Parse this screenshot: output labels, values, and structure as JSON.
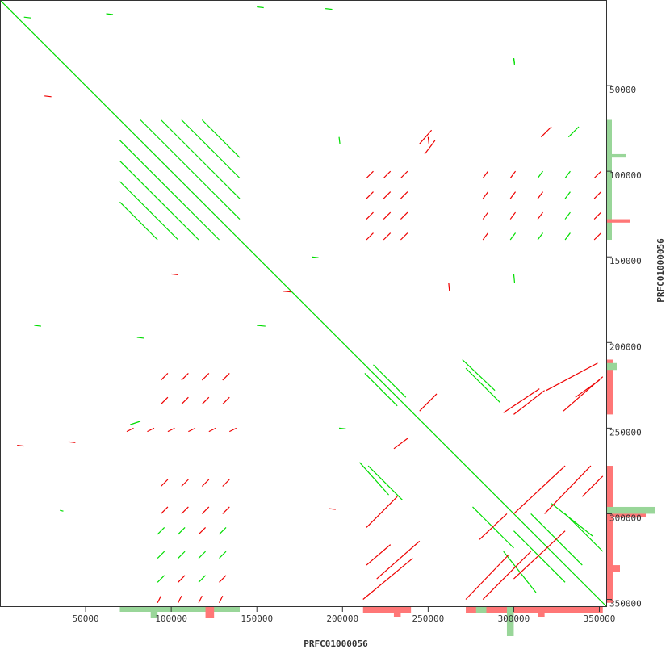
{
  "chart_data": {
    "type": "scatter",
    "subtype": "dot-plot self-alignment",
    "xlabel": "PRFC01000056",
    "ylabel": "PRFC01000056",
    "xlim": [
      0,
      354000
    ],
    "ylim": [
      0,
      354000
    ],
    "y_inverted": true,
    "x_ticks": [
      50000,
      100000,
      150000,
      200000,
      250000,
      300000,
      350000
    ],
    "y_ticks": [
      50000,
      100000,
      150000,
      200000,
      250000,
      300000,
      350000
    ],
    "x_tick_labels": [
      "50000",
      "100000",
      "150000",
      "200000",
      "250000",
      "300000",
      "350000"
    ],
    "y_tick_labels": [
      "50000",
      "100000",
      "150000",
      "200000",
      "250000",
      "300000",
      "350000"
    ],
    "grid": false,
    "colors": {
      "forward": "#00dd00",
      "reverse": "#ee0000",
      "forward_coverage": "#99d699",
      "reverse_coverage": "#ff7777",
      "frame": "#333333"
    },
    "segments": [
      [
        0,
        0,
        354000,
        354000,
        "f"
      ],
      [
        82000,
        70000,
        140000,
        128000,
        "f"
      ],
      [
        70000,
        82000,
        128000,
        140000,
        "f"
      ],
      [
        94000,
        70000,
        140000,
        116000,
        "f"
      ],
      [
        70000,
        94000,
        116000,
        140000,
        "f"
      ],
      [
        106000,
        70000,
        140000,
        104000,
        "f"
      ],
      [
        70000,
        106000,
        104000,
        140000,
        "f"
      ],
      [
        118000,
        70000,
        140000,
        92000,
        "f"
      ],
      [
        70000,
        118000,
        92000,
        140000,
        "f"
      ],
      [
        214000,
        104000,
        218000,
        100000,
        "r"
      ],
      [
        224000,
        104000,
        228000,
        100000,
        "r"
      ],
      [
        234000,
        104000,
        238000,
        100000,
        "r"
      ],
      [
        214000,
        116000,
        218000,
        112000,
        "r"
      ],
      [
        224000,
        116000,
        228000,
        112000,
        "r"
      ],
      [
        234000,
        116000,
        238000,
        112000,
        "r"
      ],
      [
        214000,
        128000,
        218000,
        124000,
        "r"
      ],
      [
        224000,
        128000,
        228000,
        124000,
        "r"
      ],
      [
        234000,
        128000,
        238000,
        124000,
        "r"
      ],
      [
        214000,
        140000,
        218000,
        136000,
        "r"
      ],
      [
        224000,
        140000,
        228000,
        136000,
        "r"
      ],
      [
        234000,
        140000,
        238000,
        136000,
        "r"
      ],
      [
        245000,
        84000,
        252000,
        76000,
        "r"
      ],
      [
        248000,
        90000,
        254000,
        82000,
        "r"
      ],
      [
        282000,
        104000,
        285000,
        100000,
        "r"
      ],
      [
        298000,
        104000,
        301000,
        100000,
        "r"
      ],
      [
        314000,
        104000,
        317000,
        100000,
        "f"
      ],
      [
        330000,
        104000,
        333000,
        100000,
        "f"
      ],
      [
        347000,
        104000,
        351000,
        100000,
        "r"
      ],
      [
        282000,
        116000,
        285000,
        112000,
        "r"
      ],
      [
        298000,
        116000,
        301000,
        112000,
        "r"
      ],
      [
        314000,
        116000,
        317000,
        112000,
        "r"
      ],
      [
        330000,
        116000,
        333000,
        112000,
        "f"
      ],
      [
        347000,
        116000,
        351000,
        112000,
        "r"
      ],
      [
        282000,
        128000,
        285000,
        124000,
        "r"
      ],
      [
        298000,
        128000,
        301000,
        124000,
        "r"
      ],
      [
        314000,
        128000,
        317000,
        124000,
        "r"
      ],
      [
        330000,
        128000,
        333000,
        124000,
        "f"
      ],
      [
        347000,
        128000,
        351000,
        124000,
        "r"
      ],
      [
        282000,
        140000,
        285000,
        136000,
        "r"
      ],
      [
        298000,
        140000,
        301000,
        136000,
        "f"
      ],
      [
        314000,
        140000,
        317000,
        136000,
        "f"
      ],
      [
        330000,
        140000,
        333000,
        136000,
        "f"
      ],
      [
        347000,
        140000,
        351000,
        136000,
        "r"
      ],
      [
        316000,
        80000,
        322000,
        74000,
        "r"
      ],
      [
        332000,
        80000,
        338000,
        74000,
        "f"
      ],
      [
        94000,
        222000,
        98000,
        218000,
        "r"
      ],
      [
        106000,
        222000,
        110000,
        218000,
        "r"
      ],
      [
        118000,
        222000,
        122000,
        218000,
        "r"
      ],
      [
        130000,
        222000,
        134000,
        218000,
        "r"
      ],
      [
        94000,
        236000,
        98000,
        232000,
        "r"
      ],
      [
        106000,
        236000,
        110000,
        232000,
        "r"
      ],
      [
        118000,
        236000,
        122000,
        232000,
        "r"
      ],
      [
        130000,
        236000,
        134000,
        232000,
        "r"
      ],
      [
        74000,
        252000,
        78000,
        250000,
        "r"
      ],
      [
        86000,
        252000,
        90000,
        250000,
        "r"
      ],
      [
        98000,
        252000,
        102000,
        250000,
        "r"
      ],
      [
        110000,
        252000,
        114000,
        250000,
        "r"
      ],
      [
        122000,
        252000,
        126000,
        250000,
        "r"
      ],
      [
        134000,
        252000,
        138000,
        250000,
        "r"
      ],
      [
        76000,
        248000,
        82000,
        246000,
        "f"
      ],
      [
        94000,
        284000,
        98000,
        280000,
        "r"
      ],
      [
        106000,
        284000,
        110000,
        280000,
        "r"
      ],
      [
        118000,
        284000,
        122000,
        280000,
        "r"
      ],
      [
        130000,
        284000,
        134000,
        280000,
        "r"
      ],
      [
        94000,
        300000,
        98000,
        296000,
        "r"
      ],
      [
        106000,
        300000,
        110000,
        296000,
        "r"
      ],
      [
        118000,
        300000,
        122000,
        296000,
        "r"
      ],
      [
        130000,
        300000,
        134000,
        296000,
        "r"
      ],
      [
        92000,
        312000,
        96000,
        308000,
        "f"
      ],
      [
        104000,
        312000,
        108000,
        308000,
        "f"
      ],
      [
        116000,
        312000,
        120000,
        308000,
        "r"
      ],
      [
        128000,
        312000,
        132000,
        308000,
        "f"
      ],
      [
        92000,
        326000,
        96000,
        322000,
        "f"
      ],
      [
        104000,
        326000,
        108000,
        322000,
        "f"
      ],
      [
        116000,
        326000,
        120000,
        322000,
        "f"
      ],
      [
        128000,
        326000,
        132000,
        322000,
        "f"
      ],
      [
        92000,
        340000,
        96000,
        336000,
        "f"
      ],
      [
        104000,
        340000,
        108000,
        336000,
        "r"
      ],
      [
        116000,
        340000,
        120000,
        336000,
        "f"
      ],
      [
        128000,
        340000,
        132000,
        336000,
        "r"
      ],
      [
        92000,
        352000,
        94000,
        348000,
        "r"
      ],
      [
        104000,
        352000,
        106000,
        348000,
        "r"
      ],
      [
        116000,
        352000,
        118000,
        348000,
        "r"
      ],
      [
        128000,
        352000,
        130000,
        348000,
        "r"
      ],
      [
        270000,
        210000,
        289000,
        228000,
        "f"
      ],
      [
        210000,
        270000,
        227000,
        289000,
        "f"
      ],
      [
        213000,
        218000,
        232000,
        237000,
        "f"
      ],
      [
        218000,
        213000,
        237000,
        232000,
        "f"
      ],
      [
        272000,
        215000,
        292000,
        235000,
        "f"
      ],
      [
        215000,
        272000,
        235000,
        292000,
        "f"
      ],
      [
        294000,
        322000,
        313000,
        346000,
        "f"
      ],
      [
        322000,
        294000,
        346000,
        313000,
        "f"
      ],
      [
        310000,
        300000,
        340000,
        330000,
        "f"
      ],
      [
        300000,
        310000,
        330000,
        340000,
        "f"
      ],
      [
        330000,
        300000,
        352000,
        322000,
        "f"
      ],
      [
        276000,
        296000,
        300000,
        320000,
        "f"
      ],
      [
        272000,
        350000,
        297000,
        324000,
        "r"
      ],
      [
        212000,
        350000,
        241000,
        326000,
        "r"
      ],
      [
        319000,
        228000,
        349000,
        212000,
        "r"
      ],
      [
        294000,
        241000,
        315000,
        227000,
        "r"
      ],
      [
        329000,
        240000,
        352000,
        220000,
        "r"
      ],
      [
        282000,
        350000,
        310000,
        322000,
        "r"
      ],
      [
        300000,
        338000,
        330000,
        310000,
        "r"
      ],
      [
        318000,
        300000,
        345000,
        272000,
        "r"
      ],
      [
        300000,
        300000,
        330000,
        272000,
        "r"
      ],
      [
        214000,
        308000,
        232000,
        290000,
        "r"
      ],
      [
        220000,
        338000,
        245000,
        316000,
        "r"
      ],
      [
        214000,
        330000,
        228000,
        318000,
        "r"
      ],
      [
        280000,
        315000,
        296000,
        300000,
        "r"
      ],
      [
        340000,
        290000,
        352000,
        278000,
        "r"
      ],
      [
        245000,
        240000,
        255000,
        230000,
        "r"
      ],
      [
        230000,
        262000,
        238000,
        256000,
        "r"
      ],
      [
        300000,
        242000,
        318000,
        228000,
        "r"
      ],
      [
        336000,
        232000,
        350000,
        222000,
        "r"
      ],
      [
        14000,
        10000,
        18000,
        10000,
        "f"
      ],
      [
        62000,
        8000,
        66000,
        8000,
        "f"
      ],
      [
        150000,
        4000,
        154000,
        4000,
        "f"
      ],
      [
        190000,
        5000,
        194000,
        5000,
        "f"
      ],
      [
        300000,
        34000,
        300000,
        37000,
        "f"
      ],
      [
        198000,
        80000,
        198000,
        84000,
        "f"
      ],
      [
        250000,
        80000,
        250000,
        84000,
        "r"
      ],
      [
        20000,
        190000,
        24000,
        190000,
        "f"
      ],
      [
        80000,
        197000,
        84000,
        197000,
        "f"
      ],
      [
        100000,
        160000,
        104000,
        160000,
        "r"
      ],
      [
        165000,
        170000,
        170000,
        170000,
        "r"
      ],
      [
        182000,
        150000,
        186000,
        150000,
        "f"
      ],
      [
        262000,
        165000,
        262000,
        170000,
        "r"
      ],
      [
        150000,
        190000,
        155000,
        190000,
        "f"
      ],
      [
        300000,
        160000,
        300000,
        165000,
        "f"
      ],
      [
        26000,
        56000,
        30000,
        56000,
        "r"
      ],
      [
        10000,
        260000,
        14000,
        260000,
        "r"
      ],
      [
        40000,
        258000,
        44000,
        258000,
        "r"
      ],
      [
        192000,
        297000,
        196000,
        297000,
        "r"
      ],
      [
        300000,
        34000,
        300000,
        38000,
        "f"
      ],
      [
        198000,
        250000,
        202000,
        250000,
        "f"
      ],
      [
        35000,
        298000,
        37000,
        298000,
        "f"
      ]
    ],
    "x_coverage": [
      [
        70000,
        140000,
        3,
        "f"
      ],
      [
        88000,
        92000,
        7,
        "f"
      ],
      [
        120000,
        125000,
        7,
        "r"
      ],
      [
        212000,
        240000,
        4,
        "r"
      ],
      [
        230000,
        234000,
        6,
        "r"
      ],
      [
        272000,
        352000,
        4,
        "r"
      ],
      [
        278000,
        284000,
        4,
        "f"
      ],
      [
        296000,
        300000,
        18,
        "f"
      ],
      [
        314000,
        318000,
        6,
        "r"
      ]
    ],
    "y_coverage": [
      [
        70000,
        140000,
        3,
        "f"
      ],
      [
        90000,
        92000,
        12,
        "f"
      ],
      [
        128000,
        130000,
        14,
        "r"
      ],
      [
        210000,
        242000,
        4,
        "r"
      ],
      [
        212000,
        216000,
        6,
        "f"
      ],
      [
        272000,
        352000,
        4,
        "r"
      ],
      [
        296000,
        300000,
        30,
        "f"
      ],
      [
        300000,
        302000,
        24,
        "r"
      ],
      [
        330000,
        334000,
        8,
        "r"
      ]
    ]
  }
}
